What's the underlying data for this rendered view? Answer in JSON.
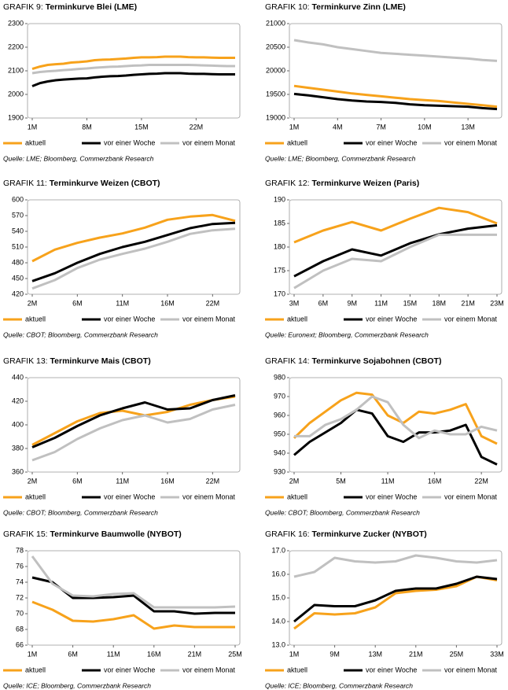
{
  "chart_data": [
    {
      "type": "line",
      "label": "GRAFIK 9:",
      "title": "Terminkurve Blei (LME)",
      "source": "Quelle: LME; Bloomberg, Commerzbank Research",
      "categories": [
        "1M",
        null,
        null,
        null,
        null,
        null,
        null,
        "8M",
        null,
        null,
        null,
        null,
        null,
        null,
        "15M",
        null,
        null,
        null,
        null,
        null,
        null,
        "22M",
        null,
        null,
        null,
        null,
        null
      ],
      "ylim": [
        1900,
        2300
      ],
      "yticks": [
        1900,
        2000,
        2100,
        2200,
        2300
      ],
      "series": [
        {
          "name": "aktuell",
          "color": "#f7a21b",
          "values": [
            2108,
            2118,
            2125,
            2128,
            2130,
            2135,
            2137,
            2140,
            2145,
            2147,
            2148,
            2150,
            2152,
            2155,
            2157,
            2157,
            2158,
            2160,
            2160,
            2160,
            2158,
            2157,
            2157,
            2156,
            2155,
            2155,
            2155
          ]
        },
        {
          "name": "vor einer Woche",
          "color": "#000000",
          "values": [
            2035,
            2048,
            2055,
            2060,
            2063,
            2065,
            2067,
            2068,
            2072,
            2075,
            2077,
            2078,
            2080,
            2083,
            2085,
            2087,
            2088,
            2090,
            2090,
            2090,
            2088,
            2087,
            2087,
            2086,
            2085,
            2085,
            2085
          ]
        },
        {
          "name": "vor einem Monat",
          "color": "#c0c0c0",
          "values": [
            2090,
            2095,
            2098,
            2100,
            2103,
            2105,
            2108,
            2110,
            2113,
            2115,
            2117,
            2118,
            2120,
            2122,
            2123,
            2125,
            2125,
            2125,
            2125,
            2125,
            2125,
            2124,
            2123,
            2122,
            2121,
            2120,
            2120
          ]
        }
      ]
    },
    {
      "type": "line",
      "label": "GRAFIK 10:",
      "title": "Terminkurve Zinn (LME)",
      "source": "Quelle: LME; Bloomberg, Commerzbank Research",
      "categories": [
        "1M",
        null,
        null,
        "4M",
        null,
        null,
        "7M",
        null,
        null,
        "10M",
        null,
        null,
        "13M",
        null,
        null
      ],
      "ylim": [
        19000,
        21000
      ],
      "yticks": [
        19000,
        19500,
        20000,
        20500,
        21000
      ],
      "series": [
        {
          "name": "aktuell",
          "color": "#f7a21b",
          "values": [
            19680,
            19640,
            19600,
            19560,
            19520,
            19490,
            19460,
            19430,
            19400,
            19380,
            19360,
            19330,
            19300,
            19270,
            19240
          ]
        },
        {
          "name": "vor einer Woche",
          "color": "#000000",
          "values": [
            19510,
            19480,
            19440,
            19400,
            19370,
            19350,
            19340,
            19320,
            19290,
            19270,
            19260,
            19250,
            19240,
            19210,
            19190
          ]
        },
        {
          "name": "vor einem Monat",
          "color": "#c0c0c0",
          "values": [
            20650,
            20600,
            20560,
            20500,
            20460,
            20420,
            20380,
            20360,
            20340,
            20320,
            20300,
            20280,
            20260,
            20230,
            20210
          ]
        }
      ]
    },
    {
      "type": "line",
      "label": "GRAFIK 11:",
      "title": "Terminkurve Weizen (CBOT)",
      "source": "Quelle: CBOT; Bloomberg, Commerzbank Research",
      "categories": [
        "2M",
        null,
        "6M",
        null,
        "11M",
        null,
        "16M",
        null,
        "22M",
        null
      ],
      "ylim": [
        420,
        600
      ],
      "yticks": [
        420,
        450,
        480,
        510,
        540,
        570,
        600
      ],
      "series": [
        {
          "name": "aktuell",
          "color": "#f7a21b",
          "values": [
            483,
            505,
            518,
            528,
            536,
            547,
            562,
            568,
            571,
            560
          ]
        },
        {
          "name": "vor einer Woche",
          "color": "#000000",
          "values": [
            445,
            460,
            480,
            497,
            510,
            520,
            533,
            546,
            554,
            556
          ]
        },
        {
          "name": "vor einem Monat",
          "color": "#c0c0c0",
          "values": [
            431,
            447,
            470,
            486,
            497,
            507,
            520,
            535,
            542,
            545
          ]
        }
      ]
    },
    {
      "type": "line",
      "label": "GRAFIK 12:",
      "title": "Terminkurve Weizen (Paris)",
      "source": "Quelle: Euronext; Bloomberg, Commerzbank Research",
      "categories": [
        "3M",
        "6M",
        "9M",
        "11M",
        "15M",
        "18M",
        "21M",
        "23M"
      ],
      "ylim": [
        170,
        190
      ],
      "yticks": [
        170,
        175,
        180,
        185,
        190
      ],
      "series": [
        {
          "name": "aktuell",
          "color": "#f7a21b",
          "values": [
            181,
            183.5,
            185.3,
            183.5,
            186,
            188.3,
            187.4,
            185
          ]
        },
        {
          "name": "vor einer Woche",
          "color": "#000000",
          "values": [
            173.8,
            177,
            179.5,
            178.2,
            180.8,
            182.7,
            183.9,
            184.6
          ]
        },
        {
          "name": "vor einem Monat",
          "color": "#c0c0c0",
          "values": [
            171.3,
            175,
            177.5,
            177,
            180,
            182.6,
            182.6,
            182.6
          ]
        }
      ]
    },
    {
      "type": "line",
      "label": "GRAFIK 13:",
      "title": "Terminkurve Mais (CBOT)",
      "source": "Quelle: CBOT; Bloomberg, Commerzbank Research",
      "categories": [
        "2M",
        null,
        "6M",
        null,
        "11M",
        null,
        "16M",
        null,
        "22M",
        null
      ],
      "ylim": [
        360,
        440
      ],
      "yticks": [
        360,
        380,
        400,
        420,
        440
      ],
      "series": [
        {
          "name": "aktuell",
          "color": "#f7a21b",
          "values": [
            383,
            393,
            403,
            410,
            412,
            408,
            411,
            417,
            421,
            424
          ]
        },
        {
          "name": "vor einer Woche",
          "color": "#000000",
          "values": [
            381,
            389,
            399,
            408,
            414,
            419,
            413,
            414,
            421,
            425
          ]
        },
        {
          "name": "vor einem Monat",
          "color": "#c0c0c0",
          "values": [
            370,
            377,
            388,
            397,
            404,
            408,
            402,
            405,
            413,
            417
          ]
        }
      ]
    },
    {
      "type": "line",
      "label": "GRAFIK 14:",
      "title": "Terminkurve Sojabohnen (CBOT)",
      "source": "Quelle: CBOT; Bloomberg, Commerzbank Research",
      "categories": [
        "2M",
        null,
        null,
        "5M",
        null,
        null,
        "11M",
        null,
        null,
        "16M",
        null,
        null,
        "22M",
        null
      ],
      "ylim": [
        930,
        980
      ],
      "yticks": [
        930,
        940,
        950,
        960,
        970,
        980
      ],
      "series": [
        {
          "name": "aktuell",
          "color": "#f7a21b",
          "values": [
            948,
            956,
            962,
            968,
            972,
            971,
            960,
            956,
            962,
            961,
            963,
            966,
            949,
            945
          ]
        },
        {
          "name": "vor einer Woche",
          "color": "#000000",
          "values": [
            939,
            946,
            951,
            956,
            963,
            961,
            949,
            946,
            951,
            951,
            952,
            955,
            938,
            934
          ]
        },
        {
          "name": "vor einem Monat",
          "color": "#c0c0c0",
          "values": [
            949,
            949,
            955,
            958,
            963,
            970,
            967,
            955,
            948,
            952,
            950,
            950,
            954,
            952
          ]
        }
      ]
    },
    {
      "type": "line",
      "label": "GRAFIK 15:",
      "title": "Terminkurve Baumwolle (NYBOT)",
      "source": "Quelle: ICE; Bloomberg, Commerzbank Research",
      "categories": [
        "1M",
        null,
        "6M",
        null,
        "11M",
        null,
        "16M",
        null,
        "21M",
        null,
        "25M"
      ],
      "ylim": [
        66,
        78
      ],
      "yticks": [
        66,
        68,
        70,
        72,
        74,
        76,
        78
      ],
      "series": [
        {
          "name": "aktuell",
          "color": "#f7a21b",
          "values": [
            71.5,
            70.5,
            69.1,
            69.0,
            69.3,
            69.8,
            68.1,
            68.5,
            68.3,
            68.3,
            68.3
          ]
        },
        {
          "name": "vor einer Woche",
          "color": "#000000",
          "values": [
            74.6,
            74.0,
            72.0,
            72.0,
            72.1,
            72.3,
            70.3,
            70.3,
            70.0,
            70.1,
            70.1
          ]
        },
        {
          "name": "vor einem Monat",
          "color": "#c0c0c0",
          "values": [
            77.3,
            73.8,
            72.3,
            72.2,
            72.5,
            72.6,
            70.8,
            70.8,
            70.8,
            70.8,
            70.9
          ]
        }
      ]
    },
    {
      "type": "line",
      "label": "GRAFIK 16:",
      "title": "Terminkurve Zucker (NYBOT)",
      "source": "Quelle: ICE; Bloomberg, Commerzbank Research",
      "categories": [
        "1M",
        null,
        "9M",
        null,
        "13M",
        null,
        "21M",
        null,
        "25M",
        null,
        "33M"
      ],
      "ylim": [
        13,
        17
      ],
      "yticks": [
        {
          "value": 13,
          "label": "13.0"
        },
        {
          "value": 14,
          "label": "14.0"
        },
        {
          "value": 15,
          "label": "15.0"
        },
        {
          "value": 16,
          "label": "16.0"
        },
        {
          "value": 17,
          "label": "17.0"
        }
      ],
      "series": [
        {
          "name": "aktuell",
          "color": "#f7a21b",
          "values": [
            13.7,
            14.35,
            14.3,
            14.35,
            14.6,
            15.2,
            15.3,
            15.35,
            15.5,
            15.9,
            15.75
          ]
        },
        {
          "name": "vor einer Woche",
          "color": "#000000",
          "values": [
            14.0,
            14.7,
            14.65,
            14.65,
            14.9,
            15.3,
            15.4,
            15.4,
            15.6,
            15.9,
            15.8
          ]
        },
        {
          "name": "vor einem Monat",
          "color": "#c0c0c0",
          "values": [
            15.9,
            16.1,
            16.7,
            16.55,
            16.5,
            16.55,
            16.8,
            16.7,
            16.55,
            16.5,
            16.6
          ]
        }
      ]
    }
  ]
}
